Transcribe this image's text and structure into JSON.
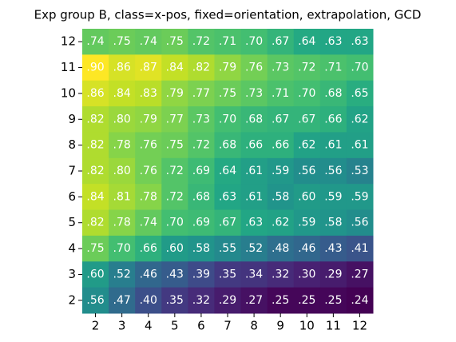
{
  "chart_data": {
    "type": "heatmap",
    "title": "Exp group B, class=x-pos, fixed=orientation, extrapolation, GCD",
    "colormap": "viridis",
    "x": [
      2,
      3,
      4,
      5,
      6,
      7,
      8,
      9,
      10,
      11,
      12
    ],
    "y": [
      12,
      11,
      10,
      9,
      8,
      7,
      6,
      5,
      4,
      3,
      2
    ],
    "values": [
      [
        0.74,
        0.75,
        0.74,
        0.75,
        0.72,
        0.71,
        0.7,
        0.67,
        0.64,
        0.63,
        0.63
      ],
      [
        0.9,
        0.86,
        0.87,
        0.84,
        0.82,
        0.79,
        0.76,
        0.73,
        0.72,
        0.71,
        0.7
      ],
      [
        0.86,
        0.84,
        0.83,
        0.79,
        0.77,
        0.75,
        0.73,
        0.71,
        0.7,
        0.68,
        0.65
      ],
      [
        0.82,
        0.8,
        0.79,
        0.77,
        0.73,
        0.7,
        0.68,
        0.67,
        0.67,
        0.66,
        0.62
      ],
      [
        0.82,
        0.78,
        0.76,
        0.75,
        0.72,
        0.68,
        0.66,
        0.66,
        0.62,
        0.61,
        0.61
      ],
      [
        0.82,
        0.8,
        0.76,
        0.72,
        0.69,
        0.64,
        0.61,
        0.59,
        0.56,
        0.56,
        0.53
      ],
      [
        0.84,
        0.81,
        0.78,
        0.72,
        0.68,
        0.63,
        0.61,
        0.58,
        0.6,
        0.59,
        0.59
      ],
      [
        0.82,
        0.78,
        0.74,
        0.7,
        0.69,
        0.67,
        0.63,
        0.62,
        0.59,
        0.58,
        0.56
      ],
      [
        0.75,
        0.7,
        0.66,
        0.6,
        0.58,
        0.55,
        0.52,
        0.48,
        0.46,
        0.43,
        0.41
      ],
      [
        0.6,
        0.52,
        0.46,
        0.43,
        0.39,
        0.35,
        0.34,
        0.32,
        0.3,
        0.29,
        0.27
      ],
      [
        0.56,
        0.47,
        0.4,
        0.35,
        0.32,
        0.29,
        0.27,
        0.25,
        0.25,
        0.25,
        0.24
      ]
    ],
    "value_labels": [
      [
        ".74",
        ".75",
        ".74",
        ".75",
        ".72",
        ".71",
        ".70",
        ".67",
        ".64",
        ".63",
        ".63"
      ],
      [
        ".90",
        ".86",
        ".87",
        ".84",
        ".82",
        ".79",
        ".76",
        ".73",
        ".72",
        ".71",
        ".70"
      ],
      [
        ".86",
        ".84",
        ".83",
        ".79",
        ".77",
        ".75",
        ".73",
        ".71",
        ".70",
        ".68",
        ".65"
      ],
      [
        ".82",
        ".80",
        ".79",
        ".77",
        ".73",
        ".70",
        ".68",
        ".67",
        ".67",
        ".66",
        ".62"
      ],
      [
        ".82",
        ".78",
        ".76",
        ".75",
        ".72",
        ".68",
        ".66",
        ".66",
        ".62",
        ".61",
        ".61"
      ],
      [
        ".82",
        ".80",
        ".76",
        ".72",
        ".69",
        ".64",
        ".61",
        ".59",
        ".56",
        ".56",
        ".53"
      ],
      [
        ".84",
        ".81",
        ".78",
        ".72",
        ".68",
        ".63",
        ".61",
        ".58",
        ".60",
        ".59",
        ".59"
      ],
      [
        ".82",
        ".78",
        ".74",
        ".70",
        ".69",
        ".67",
        ".63",
        ".62",
        ".59",
        ".58",
        ".56"
      ],
      [
        ".75",
        ".70",
        ".66",
        ".60",
        ".58",
        ".55",
        ".52",
        ".48",
        ".46",
        ".43",
        ".41"
      ],
      [
        ".60",
        ".52",
        ".46",
        ".43",
        ".39",
        ".35",
        ".34",
        ".32",
        ".30",
        ".29",
        ".27"
      ],
      [
        ".56",
        ".47",
        ".40",
        ".35",
        ".32",
        ".29",
        ".27",
        ".25",
        ".25",
        ".25",
        ".24"
      ]
    ]
  }
}
